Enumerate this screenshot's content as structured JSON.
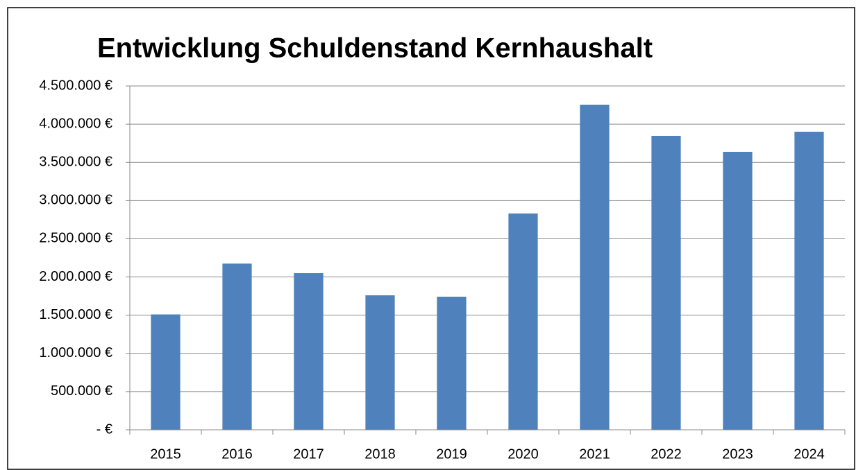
{
  "chart_data": {
    "type": "bar",
    "title": "Entwicklung Schuldenstand Kernhaushalt",
    "categories": [
      "2015",
      "2016",
      "2017",
      "2018",
      "2019",
      "2020",
      "2021",
      "2022",
      "2023",
      "2024"
    ],
    "values": [
      1510000,
      2175000,
      2050000,
      1760000,
      1742000,
      2831000,
      4255000,
      3847000,
      3638000,
      3901000
    ],
    "color": "#4f81bd",
    "ylim": [
      0,
      4500000
    ],
    "yticks": [
      {
        "value": 0,
        "label": "-   €"
      },
      {
        "value": 500000,
        "label": "500.000 €"
      },
      {
        "value": 1000000,
        "label": "1.000.000 €"
      },
      {
        "value": 1500000,
        "label": "1.500.000 €"
      },
      {
        "value": 2000000,
        "label": "2.000.000 €"
      },
      {
        "value": 2500000,
        "label": "2.500.000 €"
      },
      {
        "value": 3000000,
        "label": "3.000.000 €"
      },
      {
        "value": 3500000,
        "label": "3.500.000 €"
      },
      {
        "value": 4000000,
        "label": "4.000.000 €"
      },
      {
        "value": 4500000,
        "label": "4.500.000 €"
      }
    ],
    "grid": true
  }
}
